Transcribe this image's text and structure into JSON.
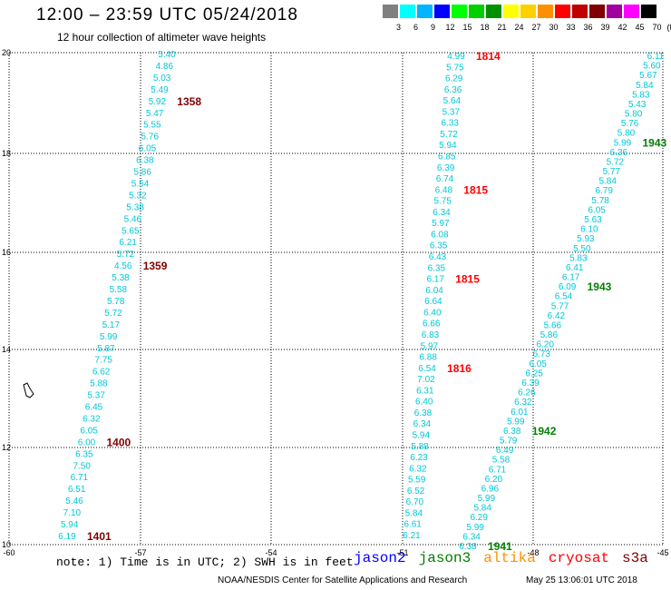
{
  "title": "12:00 – 23:59 UTC 05/24/2018",
  "subtitle": "12 hour collection of altimeter wave heights",
  "legend": {
    "unit": "(ft)",
    "bins": [
      {
        "label": "3",
        "color": "#808080"
      },
      {
        "label": "6",
        "color": "#00ffff"
      },
      {
        "label": "9",
        "color": "#00b4ff"
      },
      {
        "label": "12",
        "color": "#0000ff"
      },
      {
        "label": "15",
        "color": "#00ff00"
      },
      {
        "label": "18",
        "color": "#00d000"
      },
      {
        "label": "21",
        "color": "#009000"
      },
      {
        "label": "24",
        "color": "#ffff00"
      },
      {
        "label": "27",
        "color": "#ffd000"
      },
      {
        "label": "30",
        "color": "#ff9000"
      },
      {
        "label": "33",
        "color": "#ff0000"
      },
      {
        "label": "36",
        "color": "#c00000"
      },
      {
        "label": "39",
        "color": "#800000"
      },
      {
        "label": "42",
        "color": "#a000a0"
      },
      {
        "label": "45",
        "color": "#ff00ff"
      },
      {
        "label": "70",
        "color": "#000000"
      }
    ]
  },
  "axes": {
    "lon_ticks": [
      "-60",
      "-57",
      "-54",
      "-51",
      "-48",
      "-45"
    ],
    "lat_ticks": [
      "20",
      "18",
      "16",
      "14",
      "12",
      "10"
    ]
  },
  "tracks": [
    {
      "name": "track-1",
      "values": [
        "5.40",
        "4.86",
        "5.03",
        "5.49",
        "5.92",
        "5.47",
        "5.55",
        "5.76",
        "6.05",
        "6.38",
        "5.86",
        "5.54",
        "5.32",
        "5.38",
        "5.46",
        "5.65",
        "6.21",
        "5.72",
        "4.56",
        "5.38",
        "5.58",
        "5.78",
        "5.72",
        "5.17",
        "5.99",
        "5.87",
        "7.75",
        "6.62",
        "5.88",
        "5.37",
        "6.45",
        "6.32",
        "6.05",
        "6.00",
        "6.35",
        "7.50",
        "6.71",
        "6.51",
        "5.46",
        "7.10",
        "5.94",
        "6.19"
      ],
      "time_labels": [
        {
          "text": "1358",
          "color": "#800000",
          "after": 4
        },
        {
          "text": "1359",
          "color": "#800000",
          "after": 18
        },
        {
          "text": "1400",
          "color": "#800000",
          "after": 33
        },
        {
          "text": "1401",
          "color": "#800000",
          "after": 41
        }
      ]
    },
    {
      "name": "track-2",
      "values": [
        "4.99",
        "5.75",
        "6.29",
        "6.36",
        "5.64",
        "5.37",
        "6.33",
        "5.72",
        "5.94",
        "6.85",
        "6.39",
        "6.74",
        "6.48",
        "5.75",
        "6.34",
        "5.97",
        "6.08",
        "6.35",
        "6.43",
        "6.35",
        "6.17",
        "6.04",
        "6.64",
        "6.40",
        "6.66",
        "6.83",
        "5.97",
        "6.88",
        "6.54",
        "7.02",
        "6.31",
        "6.40",
        "6.38",
        "6.34",
        "5.94",
        "5.88",
        "6.23",
        "6.32",
        "5.59",
        "6.52",
        "6.70",
        "5.84",
        "6.61",
        "6.21"
      ],
      "time_labels": [
        {
          "text": "1814",
          "color": "#ff0000",
          "after": 0
        },
        {
          "text": "1815",
          "color": "#ff0000",
          "after": 12
        },
        {
          "text": "1815",
          "color": "#ff0000",
          "after": 20
        },
        {
          "text": "1816",
          "color": "#ff0000",
          "after": 28
        }
      ]
    },
    {
      "name": "track-3",
      "values": [
        "6.11",
        "5.60",
        "5.67",
        "5.84",
        "5.83",
        "5.43",
        "5.80",
        "5.76",
        "5.80",
        "5.99",
        "6.36",
        "5.72",
        "5.77",
        "5.84",
        "6.79",
        "5.78",
        "6.05",
        "5.63",
        "6.10",
        "5.93",
        "5.50",
        "5.83",
        "6.41",
        "6.17",
        "6.09",
        "6.54",
        "5.77",
        "6.42",
        "5.66",
        "5.86",
        "6.20",
        "6.73",
        "6.05",
        "6.25",
        "6.39",
        "6.26",
        "6.32",
        "6.01",
        "5.99",
        "6.38",
        "5.79",
        "6.49",
        "5.58",
        "6.71",
        "6.20",
        "6.96",
        "5.99",
        "5.84",
        "6.29",
        "5.99",
        "6.34",
        "6.38"
      ],
      "time_labels": [
        {
          "text": "1943",
          "color": "#008000",
          "after": 9
        },
        {
          "text": "1943",
          "color": "#008000",
          "after": 24
        },
        {
          "text": "1942",
          "color": "#008000",
          "after": 39
        },
        {
          "text": "1941",
          "color": "#008000",
          "after": 51
        }
      ]
    }
  ],
  "note": "note: 1) Time is in UTC; 2) SWH is in feet",
  "satellites": [
    {
      "name": "jason2",
      "color": "#0000ff"
    },
    {
      "name": "jason3",
      "color": "#008000"
    },
    {
      "name": "altika",
      "color": "#ff9000"
    },
    {
      "name": "cryosat",
      "color": "#ff0000"
    },
    {
      "name": "s3a",
      "color": "#800000"
    }
  ],
  "credit": "NOAA/NESDIS Center for Satellite Applications and Research",
  "timestamp": "May 25 13:06:01 UTC 2018"
}
